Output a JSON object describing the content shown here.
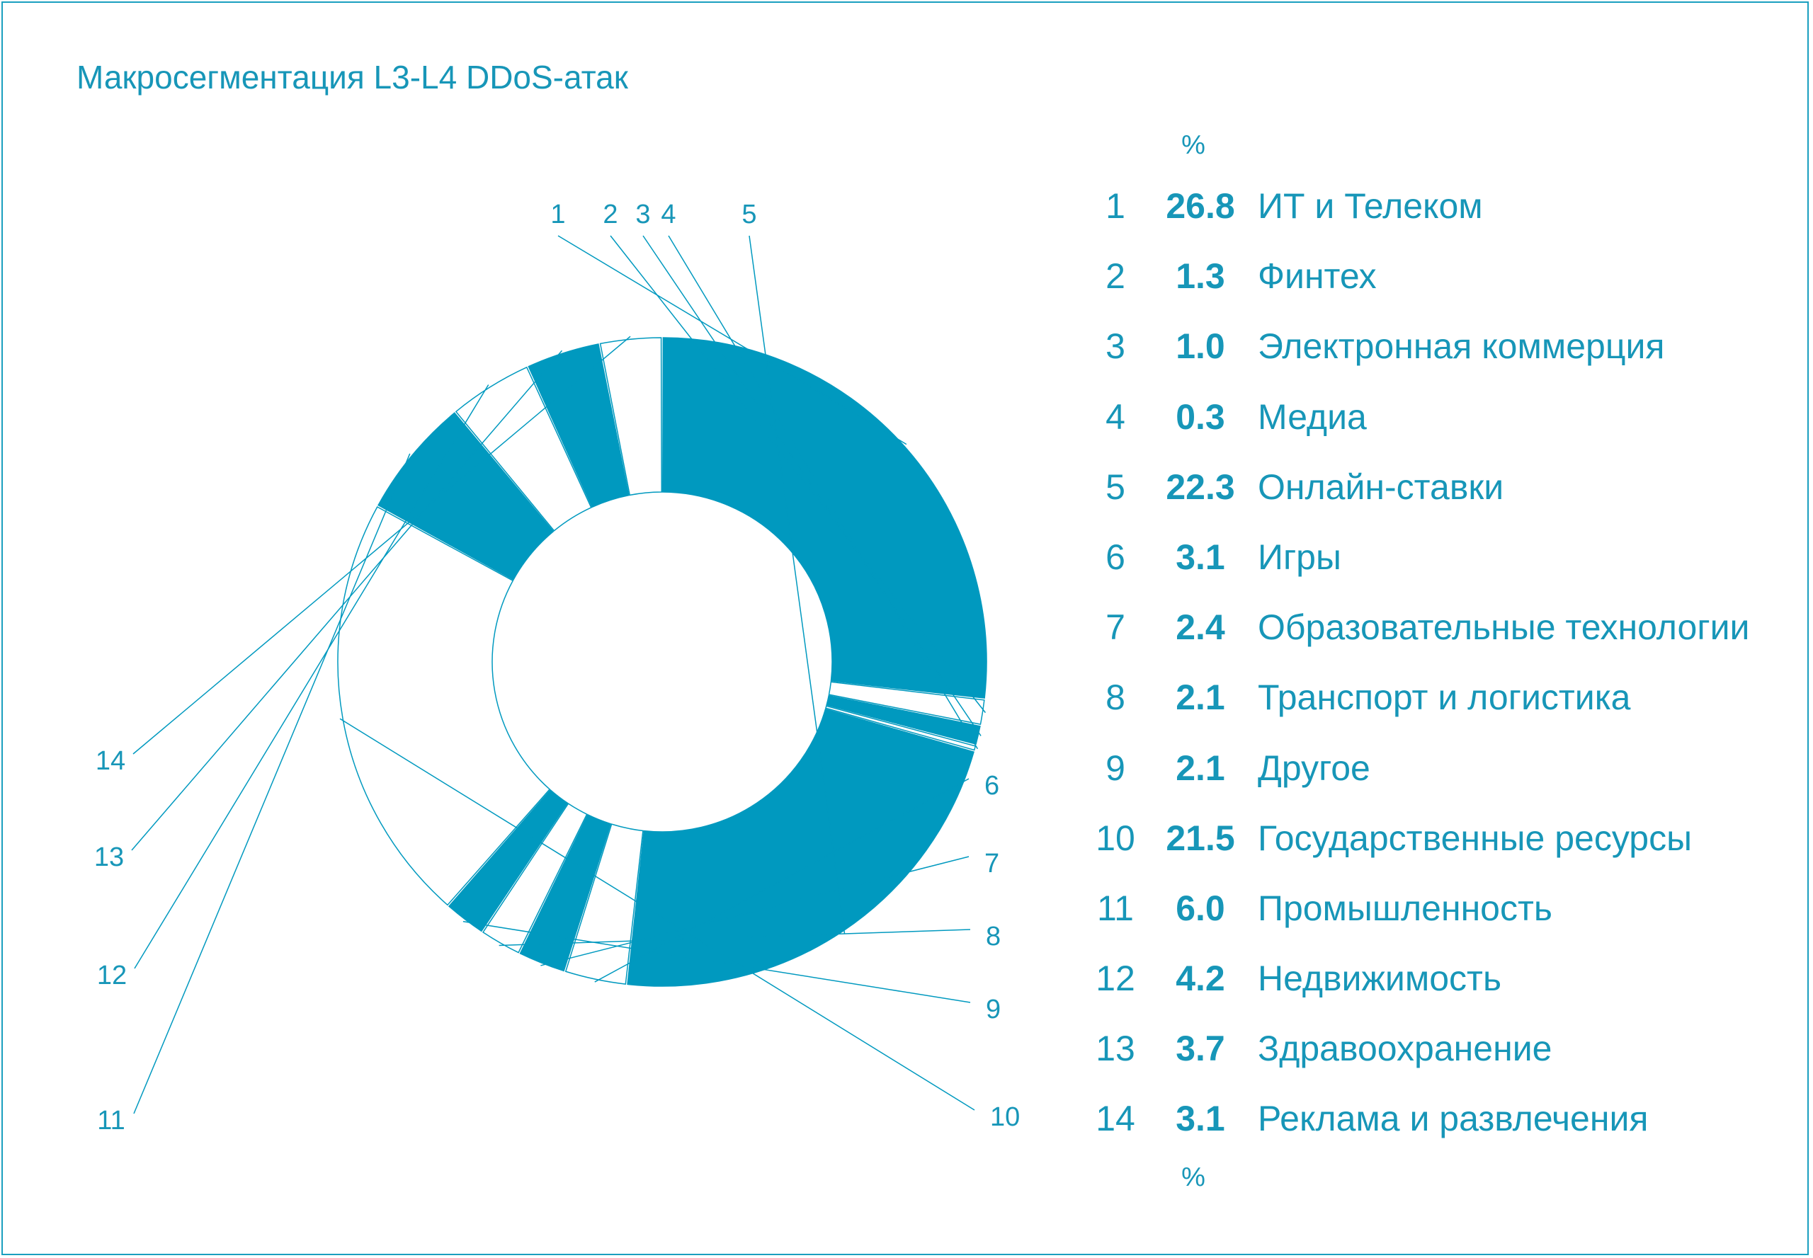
{
  "title": "Макросегментация L3-L4 DDoS-атак",
  "percent_header": "%",
  "percent_footer": "%",
  "colors": {
    "accent": "#0099bf",
    "text": "#1796b8",
    "border": "#1a9fbf",
    "background": "#ffffff"
  },
  "chart_data": {
    "type": "pie",
    "variant": "donut",
    "title": "Макросегментация L3-L4 DDoS-атак",
    "unit": "%",
    "categories": [
      "ИТ и Телеком",
      "Финтех",
      "Электронная коммерция",
      "Медиа",
      "Онлайн-ставки",
      "Игры",
      "Образовательные технологии",
      "Транспорт и логистика",
      "Другое",
      "Государственные ресурсы",
      "Промышленность",
      "Недвижимость",
      "Здравоохранение",
      "Реклама и развлечения"
    ],
    "numbers": [
      "1",
      "2",
      "3",
      "4",
      "5",
      "6",
      "7",
      "8",
      "9",
      "10",
      "11",
      "12",
      "13",
      "14"
    ],
    "values": [
      26.8,
      1.3,
      1.0,
      0.3,
      22.3,
      3.1,
      2.4,
      2.1,
      2.1,
      21.5,
      6.0,
      4.2,
      3.7,
      3.1
    ],
    "value_labels": [
      "26.8",
      "1.3",
      "1.0",
      "0.3",
      "22.3",
      "3.1",
      "2.4",
      "2.1",
      "2.1",
      "21.5",
      "6.0",
      "4.2",
      "3.7",
      "3.1"
    ],
    "fill_pattern": [
      "filled",
      "outline",
      "filled",
      "outline",
      "filled",
      "outline",
      "filled",
      "outline",
      "filled",
      "outline",
      "filled",
      "outline",
      "filled",
      "outline"
    ],
    "legend": "right"
  }
}
